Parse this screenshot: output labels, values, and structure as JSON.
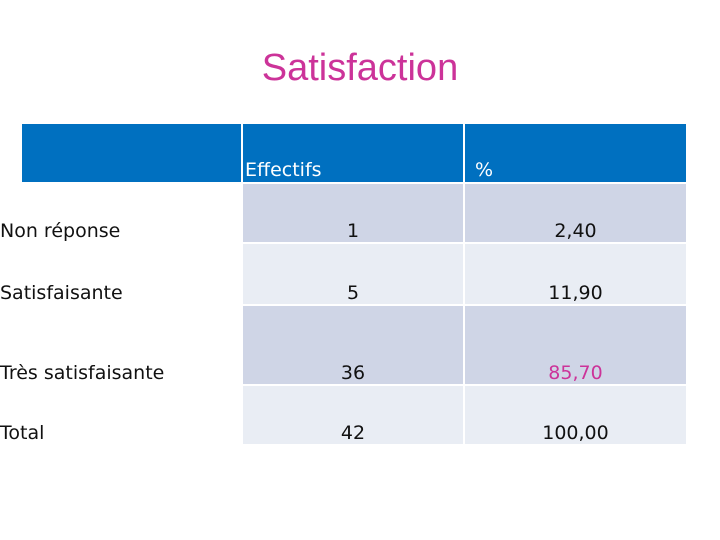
{
  "title": "Satisfaction",
  "table": {
    "headers": [
      "",
      "Effectifs",
      "%"
    ],
    "rows": [
      {
        "label": "Non réponse",
        "effectifs": "1",
        "percent": "2,40"
      },
      {
        "label": "Satisfaisante",
        "effectifs": "5",
        "percent": "11,90"
      },
      {
        "label": "Très satisfaisante",
        "effectifs": "36",
        "percent": "85,70"
      },
      {
        "label": "Total",
        "effectifs": "42",
        "percent": "100,00"
      }
    ]
  },
  "colors": {
    "title": "#cc3399",
    "header_bg": "#0070c0",
    "row_dark": "#cfd5e6",
    "row_light": "#e9edf4",
    "highlight_value": "#cc3399"
  }
}
